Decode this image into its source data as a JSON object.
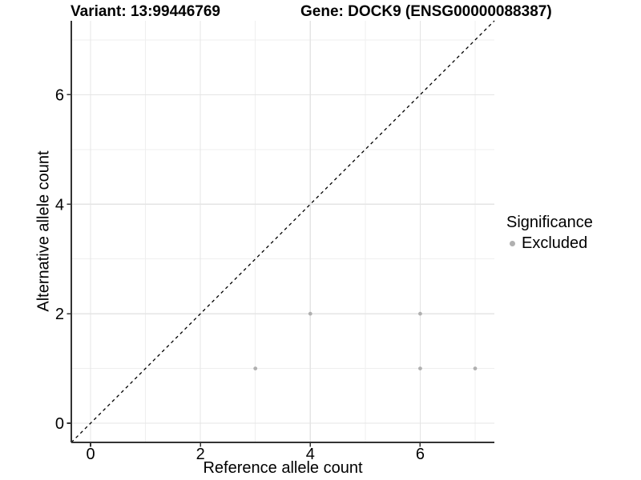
{
  "titles": {
    "variant": "Variant: 13:99446769",
    "gene": "Gene: DOCK9 (ENSG00000088387)"
  },
  "axes": {
    "x_label": "Reference allele count",
    "y_label": "Alternative allele count"
  },
  "legend": {
    "title": "Significance",
    "items": [
      {
        "label": "Excluded",
        "color": "#b0b0b0"
      }
    ]
  },
  "chart_data": {
    "type": "scatter",
    "title": "Variant: 13:99446769 | Gene: DOCK9 (ENSG00000088387)",
    "xlabel": "Reference allele count",
    "ylabel": "Alternative allele count",
    "xlim": [
      -0.35,
      7.35
    ],
    "ylim": [
      -0.35,
      7.35
    ],
    "x_ticks": [
      0,
      2,
      4,
      6
    ],
    "y_ticks": [
      0,
      2,
      4,
      6
    ],
    "x_minor_ticks": [
      1,
      3,
      5,
      7
    ],
    "y_minor_ticks": [
      1,
      3,
      5,
      7
    ],
    "grid": true,
    "legend_position": "right",
    "series": [
      {
        "name": "Excluded",
        "color": "#b0b0b0",
        "points": [
          [
            3,
            1
          ],
          [
            4,
            2
          ],
          [
            6,
            1
          ],
          [
            6,
            2
          ],
          [
            7,
            1
          ]
        ]
      }
    ],
    "reference_line": {
      "type": "identity",
      "from": [
        -0.35,
        -0.35
      ],
      "to": [
        7.35,
        7.35
      ],
      "style": "dashed",
      "color": "#000000"
    }
  },
  "colors": {
    "grid_major": "#e4e4e4",
    "grid_minor": "#efefef",
    "axis_line": "#333333",
    "tick_label": "#000000",
    "point": "#b0b0b0",
    "background": "#ffffff"
  }
}
